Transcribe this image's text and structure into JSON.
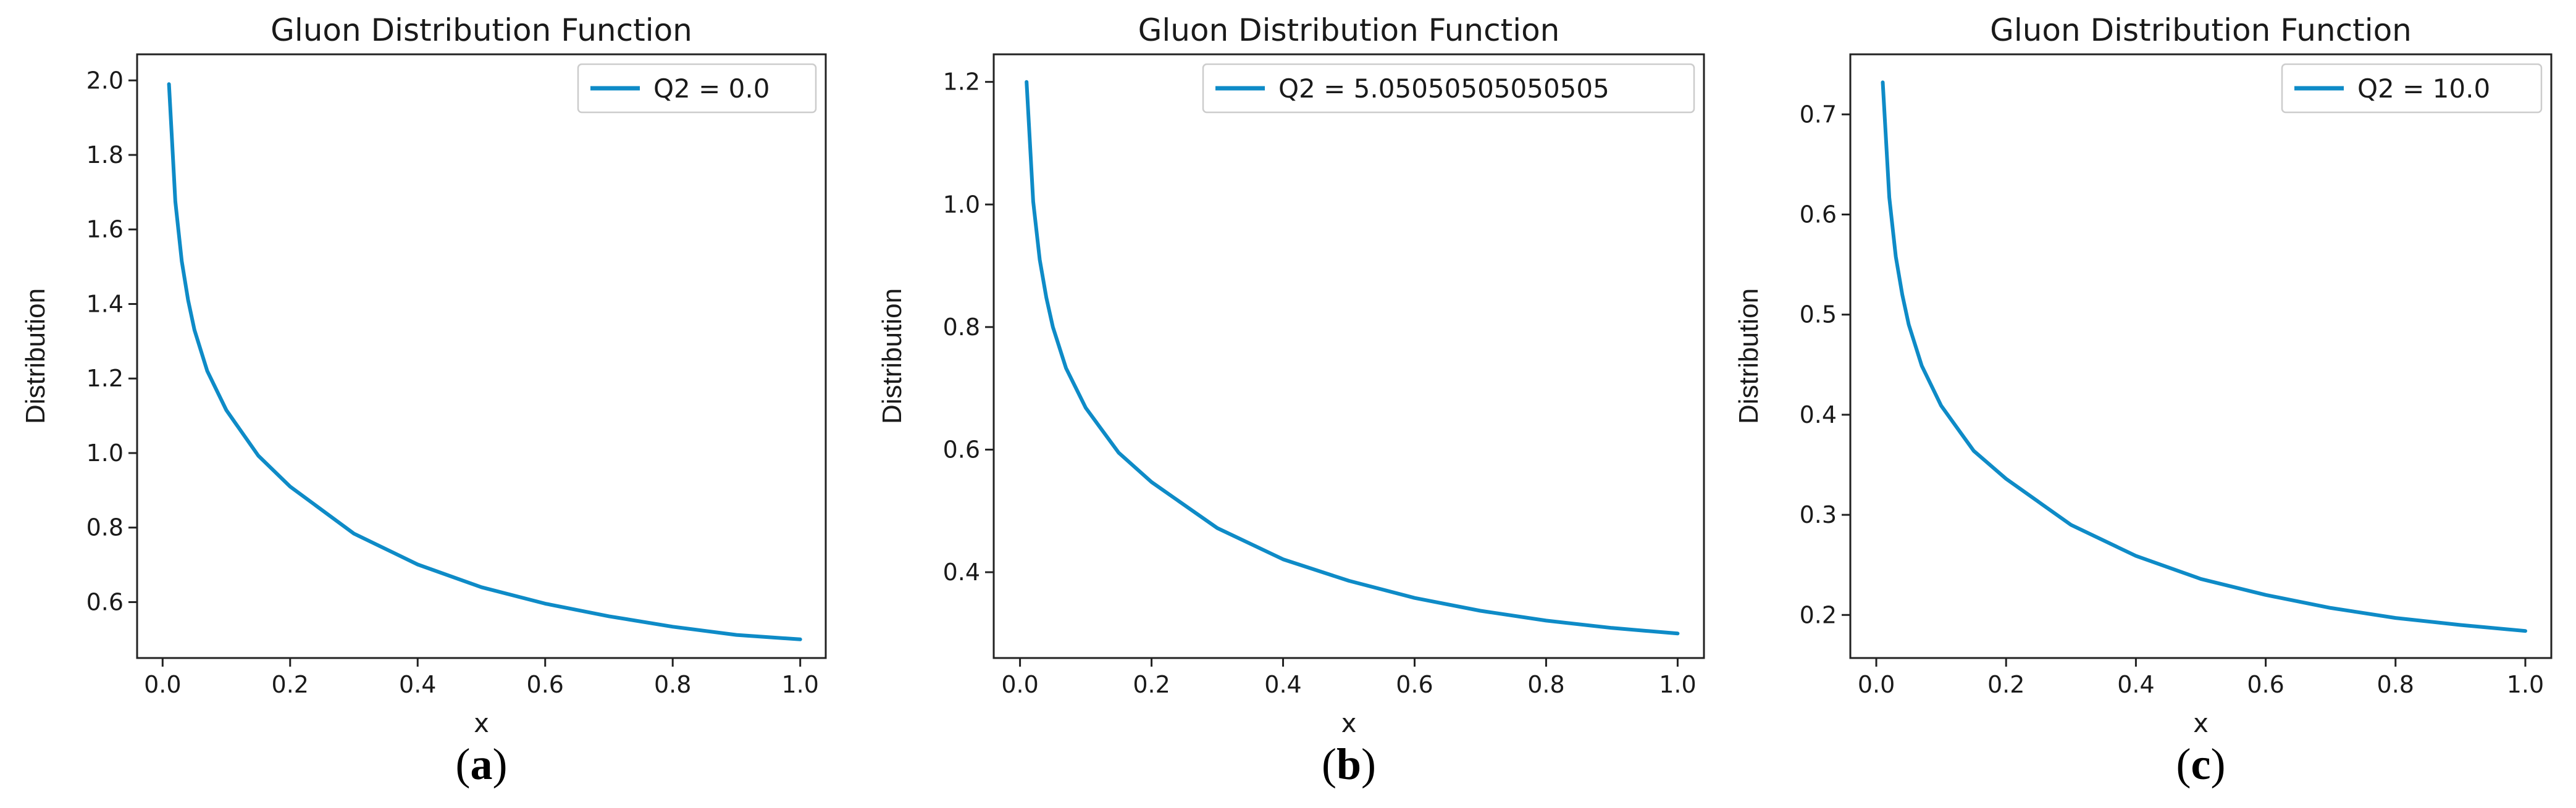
{
  "colors": {
    "line": "#0e8bc7"
  },
  "chart_data": [
    {
      "type": "line",
      "panel_label": "a",
      "title": "Gluon Distribution Function",
      "xlabel": "x",
      "ylabel": "Distribution",
      "xlim": [
        -0.04,
        1.04
      ],
      "ylim": [
        0.45,
        2.07
      ],
      "xticks": [
        0.0,
        0.2,
        0.4,
        0.6,
        0.8,
        1.0
      ],
      "xtick_labels": [
        "0.0",
        "0.2",
        "0.4",
        "0.6",
        "0.8",
        "1.0"
      ],
      "yticks": [
        0.6,
        0.8,
        1.0,
        1.2,
        1.4,
        1.6,
        1.8,
        2.0
      ],
      "ytick_labels": [
        "0.6",
        "0.8",
        "1.0",
        "1.2",
        "1.4",
        "1.6",
        "1.8",
        "2.0"
      ],
      "legend": "top-right",
      "series": [
        {
          "name": "Q2 = 0.0",
          "x": [
            0.01,
            0.02,
            0.03,
            0.04,
            0.05,
            0.07,
            0.1,
            0.15,
            0.2,
            0.3,
            0.4,
            0.5,
            0.6,
            0.7,
            0.8,
            0.9,
            1.0
          ],
          "y": [
            1.99,
            1.675,
            1.515,
            1.41,
            1.33,
            1.22,
            1.115,
            0.993,
            0.91,
            0.784,
            0.701,
            0.64,
            0.596,
            0.562,
            0.534,
            0.512,
            0.5
          ]
        }
      ]
    },
    {
      "type": "line",
      "panel_label": "b",
      "title": "Gluon Distribution Function",
      "xlabel": "x",
      "ylabel": "Distribution",
      "xlim": [
        -0.04,
        1.04
      ],
      "ylim": [
        0.26,
        1.245
      ],
      "xticks": [
        0.0,
        0.2,
        0.4,
        0.6,
        0.8,
        1.0
      ],
      "xtick_labels": [
        "0.0",
        "0.2",
        "0.4",
        "0.6",
        "0.8",
        "1.0"
      ],
      "yticks": [
        0.4,
        0.6,
        0.8,
        1.0,
        1.2
      ],
      "ytick_labels": [
        "0.4",
        "0.6",
        "0.8",
        "1.0",
        "1.2"
      ],
      "legend": "top-right",
      "series": [
        {
          "name": "Q2 = 5.05050505050505",
          "x": [
            0.01,
            0.02,
            0.03,
            0.04,
            0.05,
            0.07,
            0.1,
            0.15,
            0.2,
            0.3,
            0.4,
            0.5,
            0.6,
            0.7,
            0.8,
            0.9,
            1.0
          ],
          "y": [
            1.2,
            1.005,
            0.91,
            0.848,
            0.8,
            0.733,
            0.668,
            0.595,
            0.547,
            0.472,
            0.421,
            0.386,
            0.358,
            0.337,
            0.321,
            0.309,
            0.3
          ]
        }
      ]
    },
    {
      "type": "line",
      "panel_label": "c",
      "title": "Gluon Distribution Function",
      "xlabel": "x",
      "ylabel": "Distribution",
      "xlim": [
        -0.04,
        1.04
      ],
      "ylim": [
        0.157,
        0.76
      ],
      "xticks": [
        0.0,
        0.2,
        0.4,
        0.6,
        0.8,
        1.0
      ],
      "xtick_labels": [
        "0.0",
        "0.2",
        "0.4",
        "0.6",
        "0.8",
        "1.0"
      ],
      "yticks": [
        0.2,
        0.3,
        0.4,
        0.5,
        0.6,
        0.7
      ],
      "ytick_labels": [
        "0.2",
        "0.3",
        "0.4",
        "0.5",
        "0.6",
        "0.7"
      ],
      "legend": "top-right",
      "series": [
        {
          "name": "Q2 = 10.0",
          "x": [
            0.01,
            0.02,
            0.03,
            0.04,
            0.05,
            0.07,
            0.1,
            0.15,
            0.2,
            0.3,
            0.4,
            0.5,
            0.6,
            0.7,
            0.8,
            0.9,
            1.0
          ],
          "y": [
            0.732,
            0.617,
            0.558,
            0.52,
            0.49,
            0.449,
            0.409,
            0.364,
            0.336,
            0.29,
            0.259,
            0.236,
            0.22,
            0.207,
            0.197,
            0.19,
            0.184
          ]
        }
      ]
    }
  ]
}
